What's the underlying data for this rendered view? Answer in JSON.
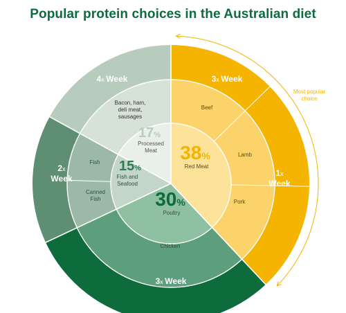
{
  "title": "Popular protein choices in the Australian diet",
  "chart_data": {
    "type": "pie",
    "title": "Popular protein choices in the Australian diet",
    "categories": [
      {
        "name": "Red Meat",
        "percent": 38,
        "frequency_num": "1",
        "frequency_unit": "x",
        "frequency_label": "Week",
        "subtypes": [
          "Beef",
          "Lamb",
          "Pork"
        ],
        "colors": {
          "outer": "#f4b400",
          "middle": "#fcd36a",
          "inner": "#fde39a"
        }
      },
      {
        "name": "Poultry",
        "percent": 30,
        "frequency_num": "3",
        "frequency_unit": "x",
        "frequency_label": "Week",
        "subtypes": [
          "Chicken"
        ],
        "colors": {
          "outer": "#0d6b3c",
          "middle": "#5d9f7c",
          "inner": "#8fc0a1"
        }
      },
      {
        "name": "Fish and Seafood",
        "percent": 15,
        "frequency_num": "2",
        "frequency_unit": "x",
        "frequency_label": "Week",
        "subtypes": [
          "Fish",
          "Canned Fish"
        ],
        "colors": {
          "outer": "#5f8f72",
          "middle": "#9bb9a6",
          "inner": "#c4d6c9"
        }
      },
      {
        "name": "Processed Meat",
        "percent": 17,
        "frequency_num": "4",
        "frequency_unit": "x",
        "frequency_label": "Week",
        "subtypes": [
          "Bacon, ham, deli meat, sausages"
        ],
        "colors": {
          "outer": "#b7ccbd",
          "middle": "#d6e2d8",
          "inner": "#e9efea"
        }
      }
    ],
    "annotation": "Most popular choice",
    "annotation_color": "#f4b400"
  }
}
